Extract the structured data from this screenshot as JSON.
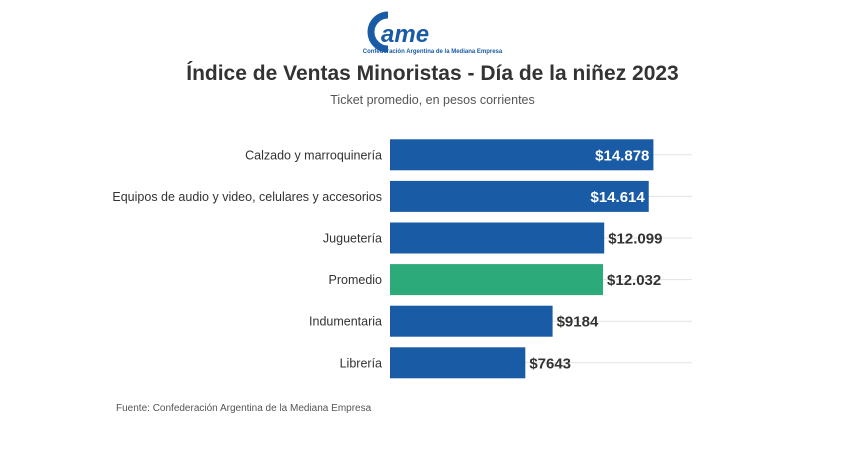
{
  "logo": {
    "text": "CAME",
    "caption": "Confederación Argentina de la Mediana Empresa"
  },
  "header": {
    "title": "Índice de Ventas Minoristas - Día de la niñez 2023",
    "subtitle": "Ticket promedio, en pesos corrientes"
  },
  "source": "Fuente: Confederación Argentina de la Mediana Empresa",
  "colors": {
    "bar": "#1a5ba6",
    "highlight": "#2daa7a",
    "logo": "#1a5ba6"
  },
  "chart_data": {
    "type": "bar",
    "orientation": "horizontal",
    "categories": [
      "Calzado y marroquinería",
      "Equipos de audio y video, celulares y accesorios",
      "Juguetería",
      "Promedio",
      "Indumentaria",
      "Librería"
    ],
    "values": [
      14878,
      14614,
      12099,
      12032,
      9184,
      7643
    ],
    "labels": [
      "$14.878",
      "$14.614",
      "$12.099",
      "$12.032",
      "$9184",
      "$7643"
    ],
    "highlight_category": "Promedio",
    "xlim": [
      0,
      16000
    ],
    "grid": true
  }
}
